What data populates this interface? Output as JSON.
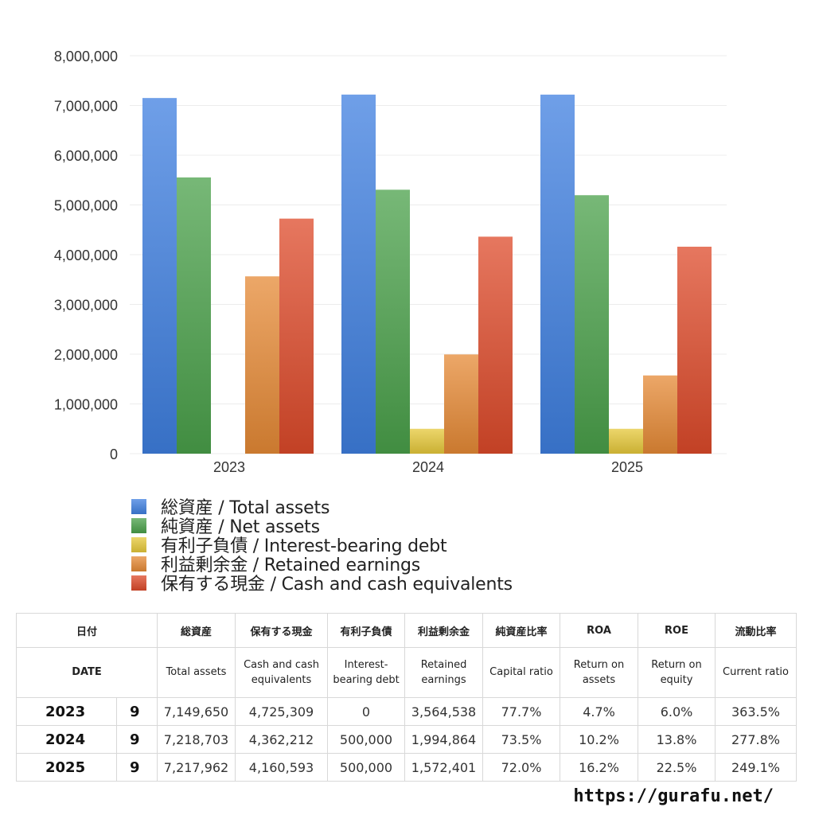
{
  "chart_data": {
    "type": "bar",
    "categories": [
      "2023",
      "2024",
      "2025"
    ],
    "series": [
      {
        "name": "総資産 / Total assets",
        "color": "#3f7fe0",
        "values": [
          7149650,
          7218703,
          7217962
        ]
      },
      {
        "name": "純資産 / Net assets",
        "color": "#4aa04a",
        "values": [
          5553000,
          5306000,
          5196000
        ]
      },
      {
        "name": "有利子負債 / Interest-bearing debt",
        "color": "#e6c83a",
        "values": [
          0,
          500000,
          500000
        ]
      },
      {
        "name": "利益剰余金 / Retained earnings",
        "color": "#e58a35",
        "values": [
          3564538,
          1994864,
          1572401
        ]
      },
      {
        "name": "保有する現金 /  Cash and cash equivalents",
        "color": "#dd4a2a",
        "values": [
          4725309,
          4362212,
          4160593
        ]
      }
    ],
    "ylim": [
      0,
      8000000
    ],
    "yticks": [
      "0",
      "1,000,000",
      "2,000,000",
      "3,000,000",
      "4,000,000",
      "5,000,000",
      "6,000,000",
      "7,000,000",
      "8,000,000"
    ],
    "grid": true,
    "legend_position": "bottom-left"
  },
  "table": {
    "headers_jp": [
      "日付",
      "総資産",
      "保有する現金",
      "有利子負債",
      "利益剰余金",
      "純資産比率",
      "ROA",
      "ROE",
      "流動比率"
    ],
    "headers_en": [
      "DATE",
      "Total assets",
      "Cash and cash equivalents",
      "Interest-bearing debt",
      "Retained earnings",
      "Capital ratio",
      "Return on assets",
      "Return on equity",
      "Current ratio"
    ],
    "rows": [
      {
        "year": "2023",
        "month": "9",
        "cells": [
          "7,149,650",
          "4,725,309",
          "0",
          "3,564,538",
          "77.7%",
          "4.7%",
          "6.0%",
          "363.5%"
        ]
      },
      {
        "year": "2024",
        "month": "9",
        "cells": [
          "7,218,703",
          "4,362,212",
          "500,000",
          "1,994,864",
          "73.5%",
          "10.2%",
          "13.8%",
          "277.8%"
        ]
      },
      {
        "year": "2025",
        "month": "9",
        "cells": [
          "7,217,962",
          "4,160,593",
          "500,000",
          "1,572,401",
          "72.0%",
          "16.2%",
          "22.5%",
          "249.1%"
        ]
      }
    ]
  },
  "source_url": "https://gurafu.net/"
}
